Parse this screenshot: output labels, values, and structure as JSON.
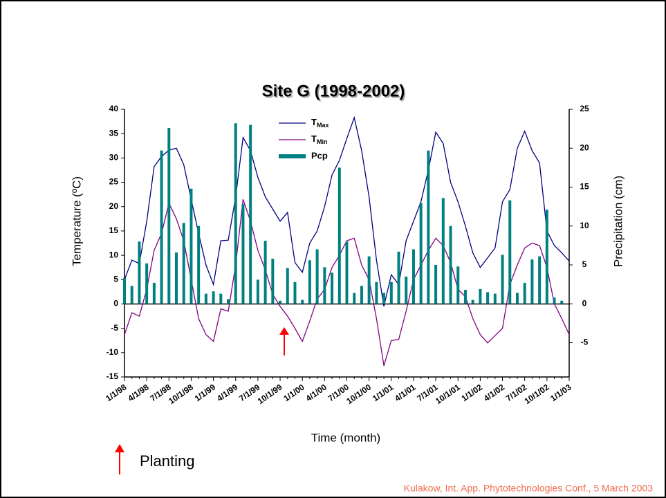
{
  "chart_data": {
    "type": "combo",
    "title": "Site G (1998-2002)",
    "x_label": "Time (month)",
    "y_label": "Temperature (ºC)",
    "y2_label": "Precipitation (cm)",
    "annotation": "Planting",
    "footer": "Kulakow, Int. App. Phytotechnologies Conf., 5 March 2003",
    "categories": [
      "1/1/98",
      null,
      null,
      "4/1/98",
      null,
      null,
      "7/1/98",
      null,
      null,
      "10/1/98",
      null,
      null,
      "1/1/99",
      null,
      null,
      "4/1/99",
      null,
      null,
      "7/1/99",
      null,
      null,
      "10/1/99",
      null,
      null,
      "1/1/00",
      null,
      null,
      "4/1/00",
      null,
      null,
      "7/1/00",
      null,
      null,
      "10/1/00",
      null,
      null,
      "1/1/01",
      null,
      null,
      "4/1/01",
      null,
      null,
      "7/1/01",
      null,
      null,
      "10/1/01",
      null,
      null,
      "1/1/02",
      null,
      null,
      "4/1/02",
      null,
      null,
      "7/1/02",
      null,
      null,
      "10/1/02",
      null,
      null,
      "1/1/03"
    ],
    "series": [
      {
        "name": "TMax",
        "kind": "line",
        "color": "#000080",
        "values": [
          5,
          9,
          8.3,
          17,
          28.2,
          30.3,
          31.6,
          32,
          28.6,
          21.5,
          14.5,
          8,
          4,
          13,
          13.1,
          22,
          34.2,
          31.5,
          26,
          22,
          19.5,
          17,
          18.8,
          8.5,
          6.5,
          12.5,
          15,
          20,
          26.5,
          29.5,
          34,
          38.3,
          31.5,
          22,
          9,
          -0.5,
          6,
          4,
          13,
          17,
          21,
          27.5,
          35.3,
          33,
          25,
          21,
          16,
          10.5,
          7.5,
          9.5,
          11.5,
          21,
          23.5,
          32,
          35.5,
          31.5,
          29,
          15,
          12,
          10.5,
          8.8
        ]
      },
      {
        "name": "TMin",
        "kind": "line",
        "color": "#800080",
        "values": [
          -6.3,
          -1.8,
          -2.5,
          3,
          11,
          14.5,
          20.7,
          17.5,
          13,
          5,
          -3,
          -6.3,
          -7.7,
          -1,
          -1.5,
          8,
          21.5,
          17,
          11,
          7,
          2,
          -0.5,
          -2.5,
          -5,
          -7.7,
          -3.5,
          1,
          3,
          7.5,
          10,
          13,
          13.5,
          8,
          5,
          -3,
          -12.7,
          -7.5,
          -7.3,
          -1.5,
          5,
          8,
          11,
          13.5,
          12,
          8.5,
          3,
          1.5,
          -3,
          -6.3,
          -8,
          -6.5,
          -5,
          4,
          8,
          11.5,
          12.5,
          12,
          7.5,
          0,
          -3,
          -6.3
        ]
      },
      {
        "name": "Pcp",
        "kind": "bar",
        "axis": "y2",
        "color": "#008080",
        "values": [
          3.3,
          2.3,
          8,
          5.2,
          2.7,
          19.7,
          22.6,
          6.6,
          10.4,
          14.8,
          10,
          1.3,
          1.6,
          1.3,
          0.6,
          23.2,
          12.8,
          23,
          3.1,
          8.1,
          5.8,
          0.4,
          4.6,
          2.8,
          0.5,
          5.6,
          7,
          4.7,
          4,
          17.5,
          8,
          1.4,
          2.3,
          6.1,
          2.8,
          1.4,
          2.8,
          6.7,
          3.5,
          7,
          13,
          19.7,
          5,
          13.6,
          10,
          4.8,
          1.8,
          0.5,
          1.9,
          1.5,
          1.3,
          6.3,
          13.3,
          1.4,
          2.7,
          5.7,
          6.1,
          12.1,
          0.8,
          0.4,
          null
        ]
      }
    ],
    "ylim": [
      -15,
      40
    ],
    "yticks": [
      -15,
      -10,
      -5,
      0,
      5,
      10,
      15,
      20,
      25,
      30,
      35,
      40
    ],
    "y2lim": [
      -9.4,
      25
    ],
    "y2ticks": [
      -5,
      0,
      5,
      10,
      15,
      20,
      25
    ],
    "grid": false
  }
}
